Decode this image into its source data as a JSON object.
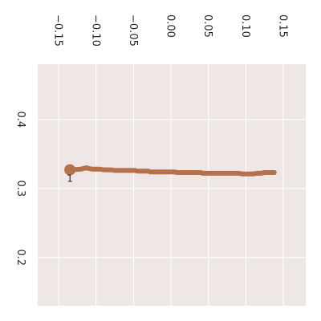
{
  "chart_data": {
    "type": "line",
    "title": "",
    "xlabel": "",
    "ylabel": "",
    "x_ticks": [
      "−0.15",
      "−0.10",
      "−0.05",
      "0.00",
      "0.05",
      "0.10",
      "0.15"
    ],
    "y_ticks": [
      "0.2",
      "0.3",
      "0.4"
    ],
    "xlim": [
      -0.178,
      0.18
    ],
    "ylim": [
      0.48,
      0.13
    ],
    "grid": true,
    "colors": {
      "background": "#efe6e6",
      "grid": "#ffffff",
      "line": "#b5714b"
    },
    "start_marker_label": "1",
    "series": [
      {
        "x": [
          -0.135,
          -0.12,
          -0.113,
          -0.11,
          -0.105,
          -0.095,
          -0.09,
          -0.085,
          -0.08,
          -0.075,
          -0.072,
          -0.07,
          -0.06,
          -0.05,
          -0.048,
          -0.045,
          -0.04,
          -0.03,
          -0.028,
          -0.025,
          -0.02,
          -0.01,
          0.0,
          0.005,
          0.008,
          0.01,
          0.02,
          0.035,
          0.04,
          0.042,
          0.045,
          0.05,
          0.06,
          0.07,
          0.08,
          0.09,
          0.095,
          0.098,
          0.1,
          0.11,
          0.115,
          0.12,
          0.125,
          0.13,
          0.138
        ],
        "y": [
          0.327,
          0.328,
          0.33,
          0.329,
          0.328,
          0.328,
          0.327,
          0.327,
          0.327,
          0.326,
          0.326,
          0.326,
          0.326,
          0.326,
          0.326,
          0.325,
          0.325,
          0.325,
          0.324,
          0.324,
          0.324,
          0.324,
          0.324,
          0.324,
          0.323,
          0.323,
          0.323,
          0.323,
          0.323,
          0.322,
          0.322,
          0.322,
          0.322,
          0.322,
          0.322,
          0.322,
          0.321,
          0.321,
          0.321,
          0.321,
          0.322,
          0.322,
          0.323,
          0.323,
          0.323
        ]
      }
    ]
  }
}
